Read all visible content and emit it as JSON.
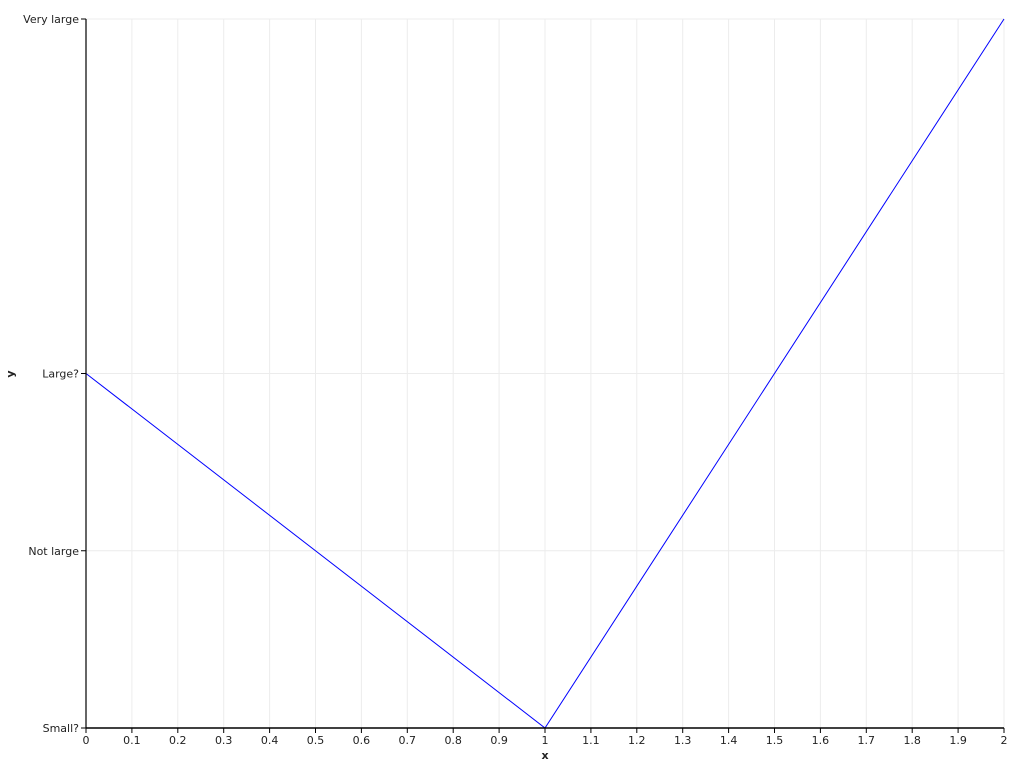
{
  "chart_data": {
    "type": "line",
    "title": "",
    "xlabel": "x",
    "ylabel": "y",
    "xlim": [
      0,
      2
    ],
    "ylim": [
      0,
      4
    ],
    "x_ticks": [
      0,
      0.1,
      0.2,
      0.3,
      0.4,
      0.5,
      0.6,
      0.7,
      0.8,
      0.9,
      1,
      1.1,
      1.2,
      1.3,
      1.4,
      1.5,
      1.6,
      1.7,
      1.8,
      1.9,
      2
    ],
    "x_tick_labels": [
      "0",
      "0.1",
      "0.2",
      "0.3",
      "0.4",
      "0.5",
      "0.6",
      "0.7",
      "0.8",
      "0.9",
      "1",
      "1.1",
      "1.2",
      "1.3",
      "1.4",
      "1.5",
      "1.6",
      "1.7",
      "1.8",
      "1.9",
      "2"
    ],
    "y_ticks": [
      0,
      1,
      2,
      4
    ],
    "y_tick_labels": [
      "Small?",
      "Not large",
      "Large?",
      "Very large"
    ],
    "grid": true,
    "series": [
      {
        "x": [
          0,
          1,
          2
        ],
        "y": [
          2,
          0,
          4
        ],
        "color": "#0000ff"
      }
    ]
  }
}
